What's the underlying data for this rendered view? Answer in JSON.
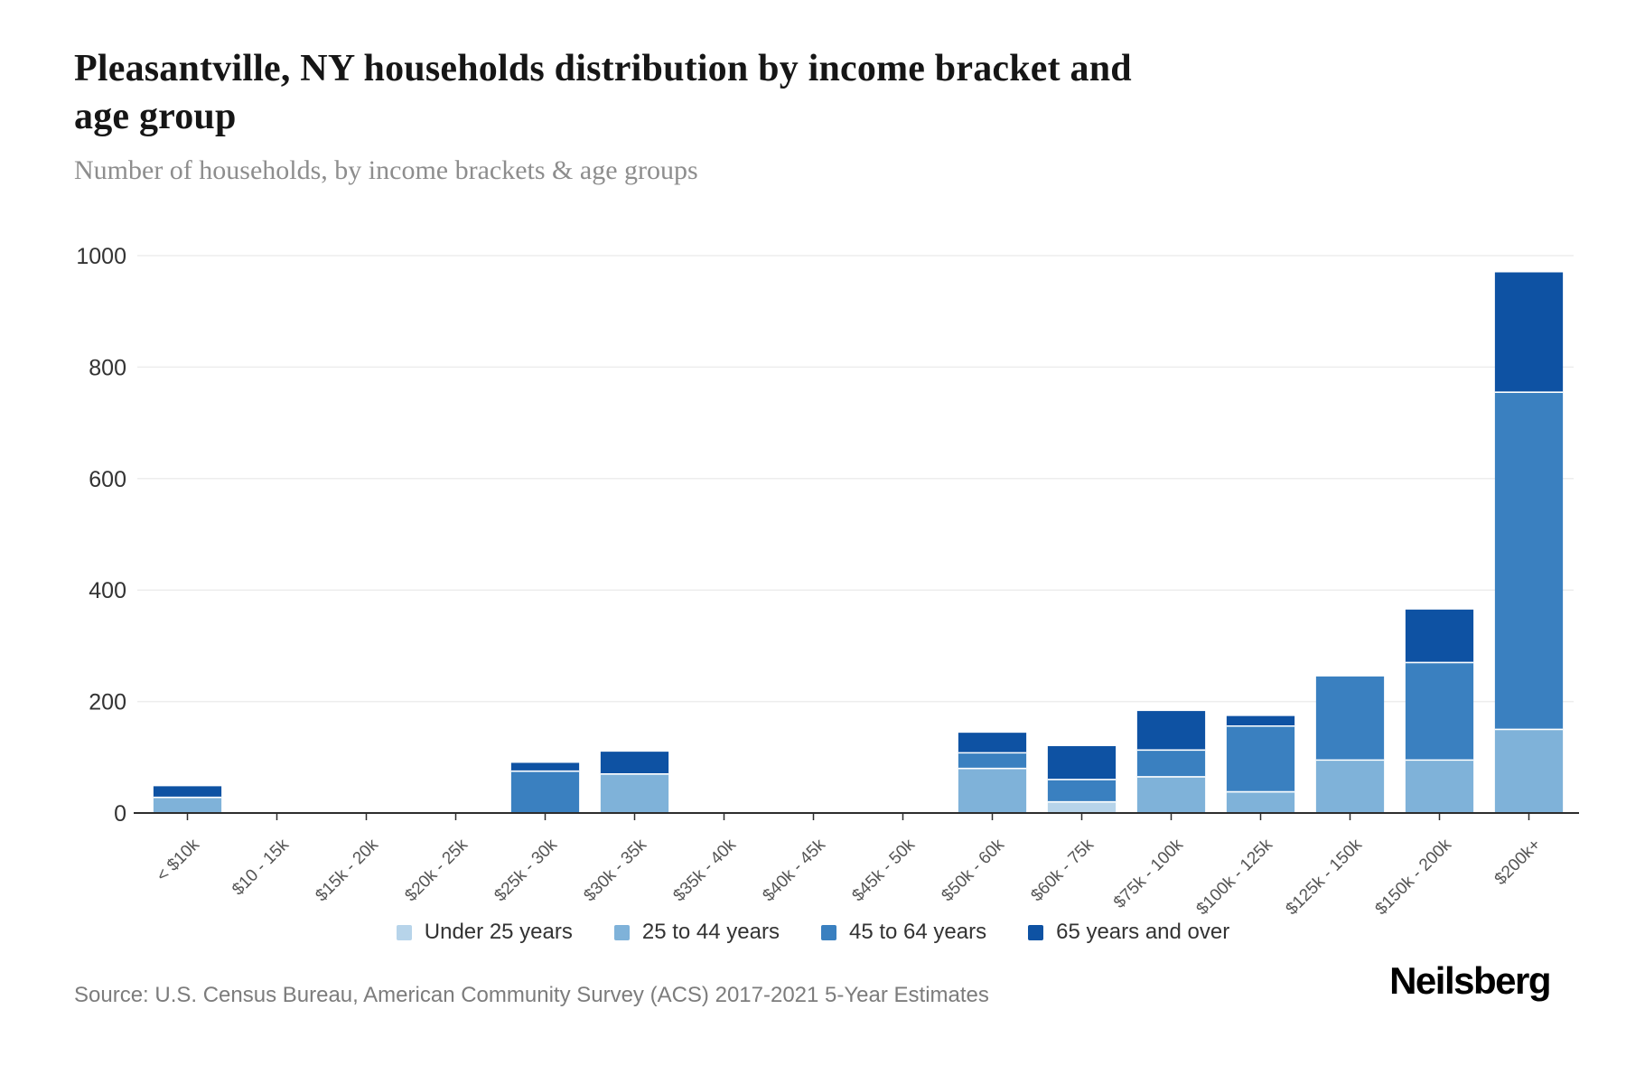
{
  "header": {
    "title_lines": [
      "Pleasantville, NY households distribution by income bracket and",
      "age group"
    ],
    "title_full": "Pleasantville, NY households distribution by income bracket and age group",
    "subtitle": "Number of households, by income brackets & age groups"
  },
  "chart_data": {
    "type": "bar",
    "stacked": true,
    "title": "Pleasantville, NY households distribution by income bracket and age group",
    "subtitle": "Number of households, by income brackets & age groups",
    "xlabel": "",
    "ylabel": "",
    "ylim": [
      0,
      1000
    ],
    "yticks": [
      0,
      200,
      400,
      600,
      800,
      1000
    ],
    "grid": true,
    "legend_position": "bottom",
    "categories": [
      "< $10k",
      "$10 - 15k",
      "$15k - 20k",
      "$20k - 25k",
      "$25k - 30k",
      "$30k - 35k",
      "$35k - 40k",
      "$40k - 45k",
      "$45k - 50k",
      "$50k - 60k",
      "$60k - 75k",
      "$75k - 100k",
      "$100k - 125k",
      "$125k - 150k",
      "$150k - 200k",
      "$200k+"
    ],
    "series": [
      {
        "name": "Under 25 years",
        "color": "#b7d4ea",
        "values": [
          0,
          0,
          0,
          0,
          0,
          0,
          0,
          0,
          0,
          0,
          20,
          0,
          0,
          0,
          0,
          0
        ]
      },
      {
        "name": "25 to 44 years",
        "color": "#7fb2d9",
        "values": [
          28,
          0,
          0,
          0,
          0,
          70,
          0,
          0,
          0,
          80,
          0,
          65,
          38,
          95,
          95,
          150
        ]
      },
      {
        "name": "45 to 64 years",
        "color": "#3a80c0",
        "values": [
          0,
          0,
          0,
          0,
          75,
          0,
          0,
          0,
          0,
          28,
          40,
          48,
          118,
          150,
          175,
          605
        ]
      },
      {
        "name": "65 years and over",
        "color": "#0e52a3",
        "values": [
          20,
          0,
          0,
          0,
          15,
          40,
          0,
          0,
          0,
          36,
          60,
          70,
          18,
          0,
          95,
          215
        ]
      }
    ],
    "axis_colors": {
      "gridline": "#ededed",
      "axis_line": "#2d2d2d",
      "y_tick_text": "#333333",
      "x_tick_text": "#555555"
    }
  },
  "footer": {
    "source": "Source: U.S. Census Bureau, American Community Survey (ACS) 2017-2021 5-Year Estimates",
    "brand": "Neilsberg"
  }
}
